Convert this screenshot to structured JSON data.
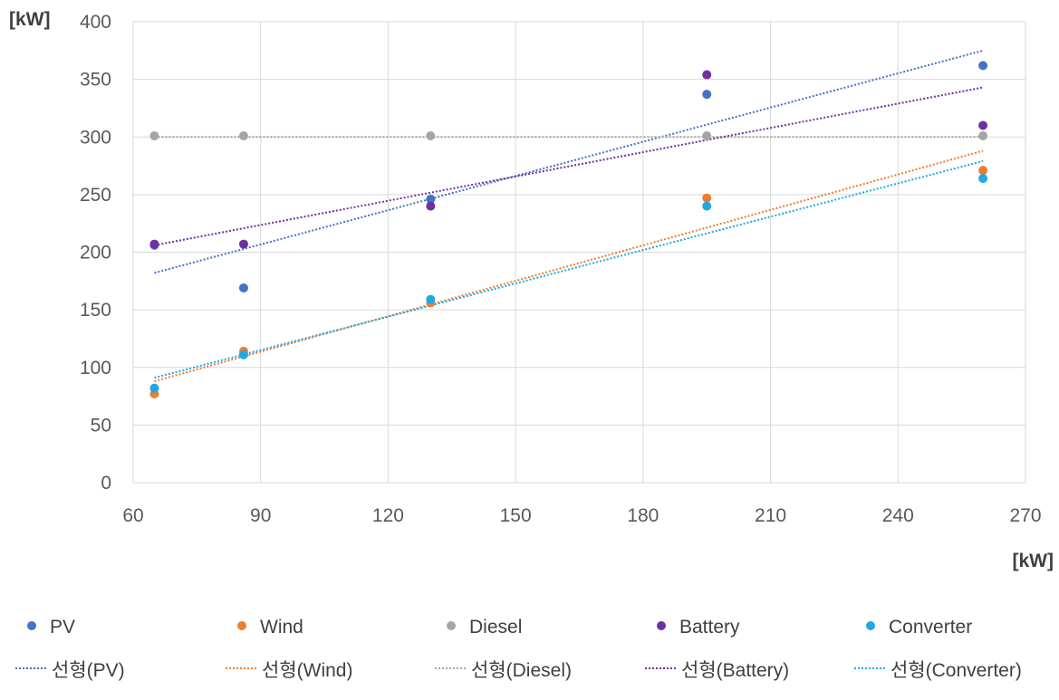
{
  "chart_data": {
    "type": "scatter",
    "title": "",
    "xlabel": "[kW]",
    "ylabel": "[kW]",
    "xlim": [
      60,
      270
    ],
    "ylim": [
      0,
      400
    ],
    "xticks": [
      60,
      90,
      120,
      150,
      180,
      210,
      240,
      270
    ],
    "yticks": [
      0,
      50,
      100,
      150,
      200,
      250,
      300,
      350,
      400
    ],
    "xtick_labels": [
      "60",
      "90",
      "120",
      "150",
      "180",
      "210",
      "240",
      "270"
    ],
    "ytick_labels": [
      "0",
      "50",
      "100",
      "150",
      "200",
      "250",
      "300",
      "350",
      "400"
    ],
    "grid": true,
    "legend_position": "bottom",
    "trendline_prefix": "선형",
    "series": [
      {
        "name": "PV",
        "color": "#4472C4",
        "x": [
          65,
          86,
          130,
          195,
          260
        ],
        "y": [
          206,
          169,
          246,
          337,
          362
        ],
        "trendline_label": "선형(PV)",
        "trend": [
          [
            65,
            182
          ],
          [
            260,
            375
          ]
        ]
      },
      {
        "name": "Wind",
        "color": "#ED7D31",
        "x": [
          65,
          86,
          130,
          195,
          260
        ],
        "y": [
          77,
          114,
          156,
          247,
          271
        ],
        "trendline_label": "선형(Wind)",
        "trend": [
          [
            65,
            88
          ],
          [
            260,
            288
          ]
        ]
      },
      {
        "name": "Diesel",
        "color": "#A5A5A5",
        "x": [
          65,
          86,
          130,
          195,
          260
        ],
        "y": [
          301,
          301,
          301,
          301,
          301
        ],
        "trendline_label": "선형(Diesel)",
        "trend": [
          [
            65,
            300
          ],
          [
            260,
            300
          ]
        ]
      },
      {
        "name": "Battery",
        "color": "#7030A0",
        "x": [
          65,
          86,
          130,
          195,
          260
        ],
        "y": [
          207,
          207,
          240,
          354,
          310
        ],
        "trendline_label": "선형(Battery)",
        "trend": [
          [
            65,
            206
          ],
          [
            260,
            343
          ]
        ]
      },
      {
        "name": "Converter",
        "color": "#1FA9E1",
        "x": [
          65,
          86,
          130,
          195,
          260
        ],
        "y": [
          82,
          111,
          159,
          240,
          264
        ],
        "trendline_label": "선형(Converter)",
        "trend": [
          [
            65,
            91
          ],
          [
            260,
            279
          ]
        ]
      }
    ]
  }
}
